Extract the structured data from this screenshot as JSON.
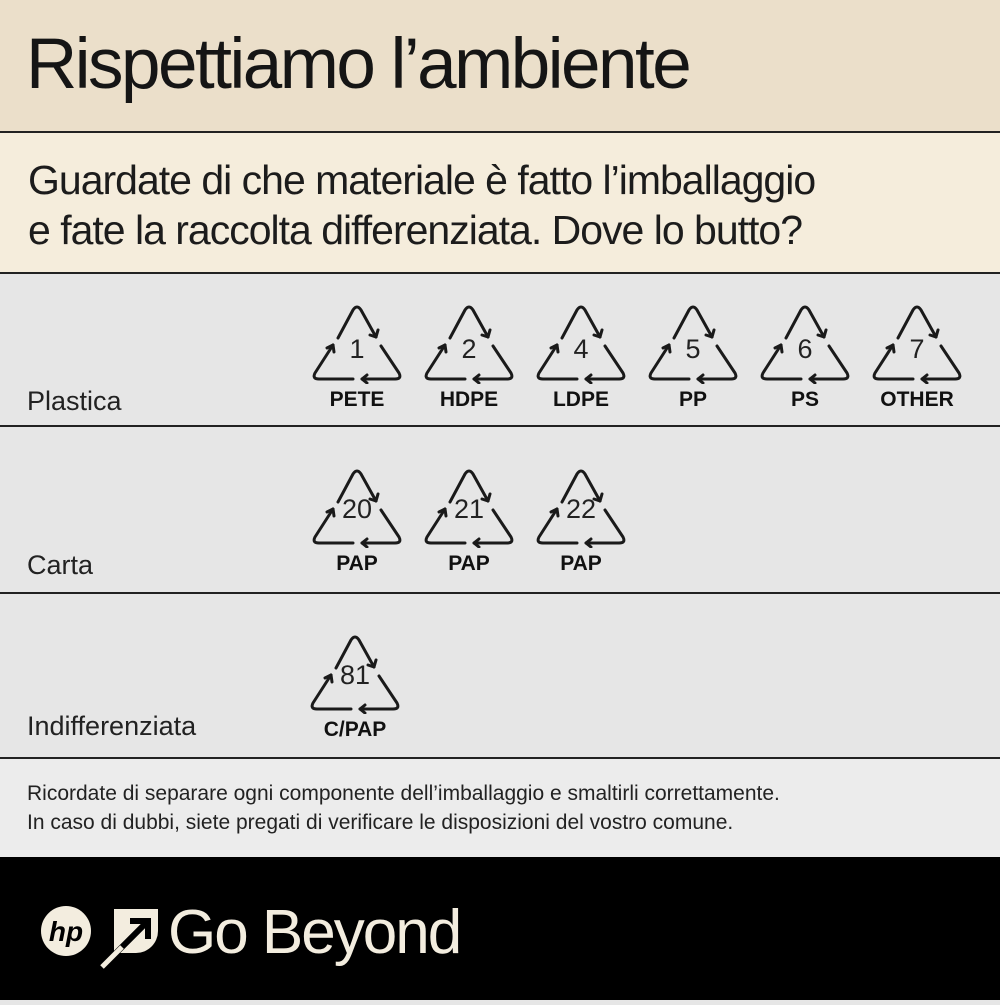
{
  "header": {
    "title": "Rispettiamo l’ambiente"
  },
  "subheader": {
    "line1": "Guardate di che materiale è fatto l’imballaggio",
    "line2": "e fate la raccolta differenziata.  Dove lo butto?"
  },
  "rows": [
    {
      "label": "Plastica",
      "symbols": [
        {
          "number": "1",
          "code": "PETE"
        },
        {
          "number": "2",
          "code": "HDPE"
        },
        {
          "number": "4",
          "code": "LDPE"
        },
        {
          "number": "5",
          "code": "PP"
        },
        {
          "number": "6",
          "code": "PS"
        },
        {
          "number": "7",
          "code": "OTHER"
        }
      ]
    },
    {
      "label": "Carta",
      "symbols": [
        {
          "number": "20",
          "code": "PAP"
        },
        {
          "number": "21",
          "code": "PAP"
        },
        {
          "number": "22",
          "code": "PAP"
        }
      ]
    },
    {
      "label": "Indifferenziata",
      "symbols": [
        {
          "number": "81",
          "code": "C/PAP"
        }
      ]
    }
  ],
  "note": {
    "line1": "Ricordate di separare ogni componente dell’imballaggio e smaltirli correttamente.",
    "line2": "In caso di dubbi, siete pregati di verificare le disposizioni del vostro comune."
  },
  "footer": {
    "logo": "hp",
    "slogan": "Go Beyond"
  },
  "colors": {
    "header_bg": "#ebdfca",
    "subheader_bg": "#f5eddc",
    "row_bg": "#e6e6e6",
    "footer_bg": "#000000",
    "footer_text": "#f3eddf"
  }
}
